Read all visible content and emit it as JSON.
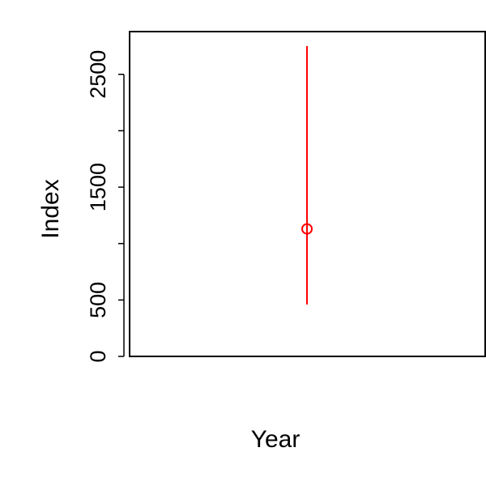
{
  "chart_data": {
    "type": "scatter",
    "title": "",
    "xlabel": "Year",
    "ylabel": "Index",
    "ylim": [
      0,
      2900
    ],
    "y_ticks": [
      0,
      500,
      1500,
      2500
    ],
    "y_tick_labels": [
      "0",
      "500",
      "1500",
      "2500"
    ],
    "extra_y_tick_marks": [
      1000,
      2000
    ],
    "grid": false,
    "legend": "none",
    "series": [
      {
        "color": "#ff0000",
        "points": [
          {
            "y": 1130,
            "lower": 460,
            "upper": 2750
          }
        ]
      }
    ]
  }
}
